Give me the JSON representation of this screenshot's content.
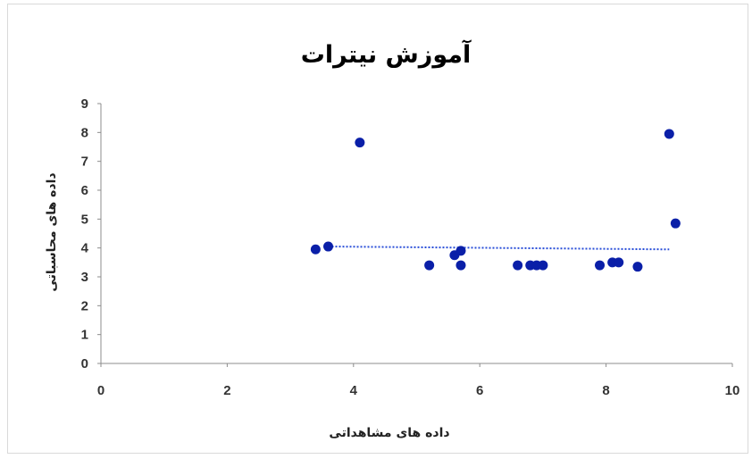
{
  "chart_data": {
    "type": "scatter",
    "title": "آموزش نیترات",
    "xlabel": "داده های مشاهداتی",
    "ylabel": "داده های محاسباتی",
    "xlim": [
      0,
      10
    ],
    "ylim": [
      0,
      9
    ],
    "x_ticks": [
      0,
      2,
      4,
      6,
      8,
      10
    ],
    "y_ticks": [
      0,
      1,
      2,
      3,
      4,
      5,
      6,
      7,
      8,
      9
    ],
    "grid": false,
    "legend": "none",
    "marker_color": "#0a1fa8",
    "trendline_color": "#2a4fd8",
    "trendline": {
      "style": "dotted",
      "points": [
        [
          3.6,
          4.05
        ],
        [
          9.0,
          3.95
        ]
      ]
    },
    "series": [
      {
        "points": [
          [
            3.4,
            3.95
          ],
          [
            3.6,
            4.05
          ],
          [
            4.1,
            7.65
          ],
          [
            5.2,
            3.4
          ],
          [
            5.6,
            3.75
          ],
          [
            5.7,
            3.9
          ],
          [
            5.7,
            3.4
          ],
          [
            6.6,
            3.4
          ],
          [
            6.8,
            3.4
          ],
          [
            6.9,
            3.4
          ],
          [
            7.0,
            3.4
          ],
          [
            7.9,
            3.4
          ],
          [
            8.1,
            3.5
          ],
          [
            8.2,
            3.5
          ],
          [
            8.5,
            3.35
          ],
          [
            9.0,
            7.95
          ],
          [
            9.1,
            4.85
          ]
        ]
      }
    ]
  }
}
